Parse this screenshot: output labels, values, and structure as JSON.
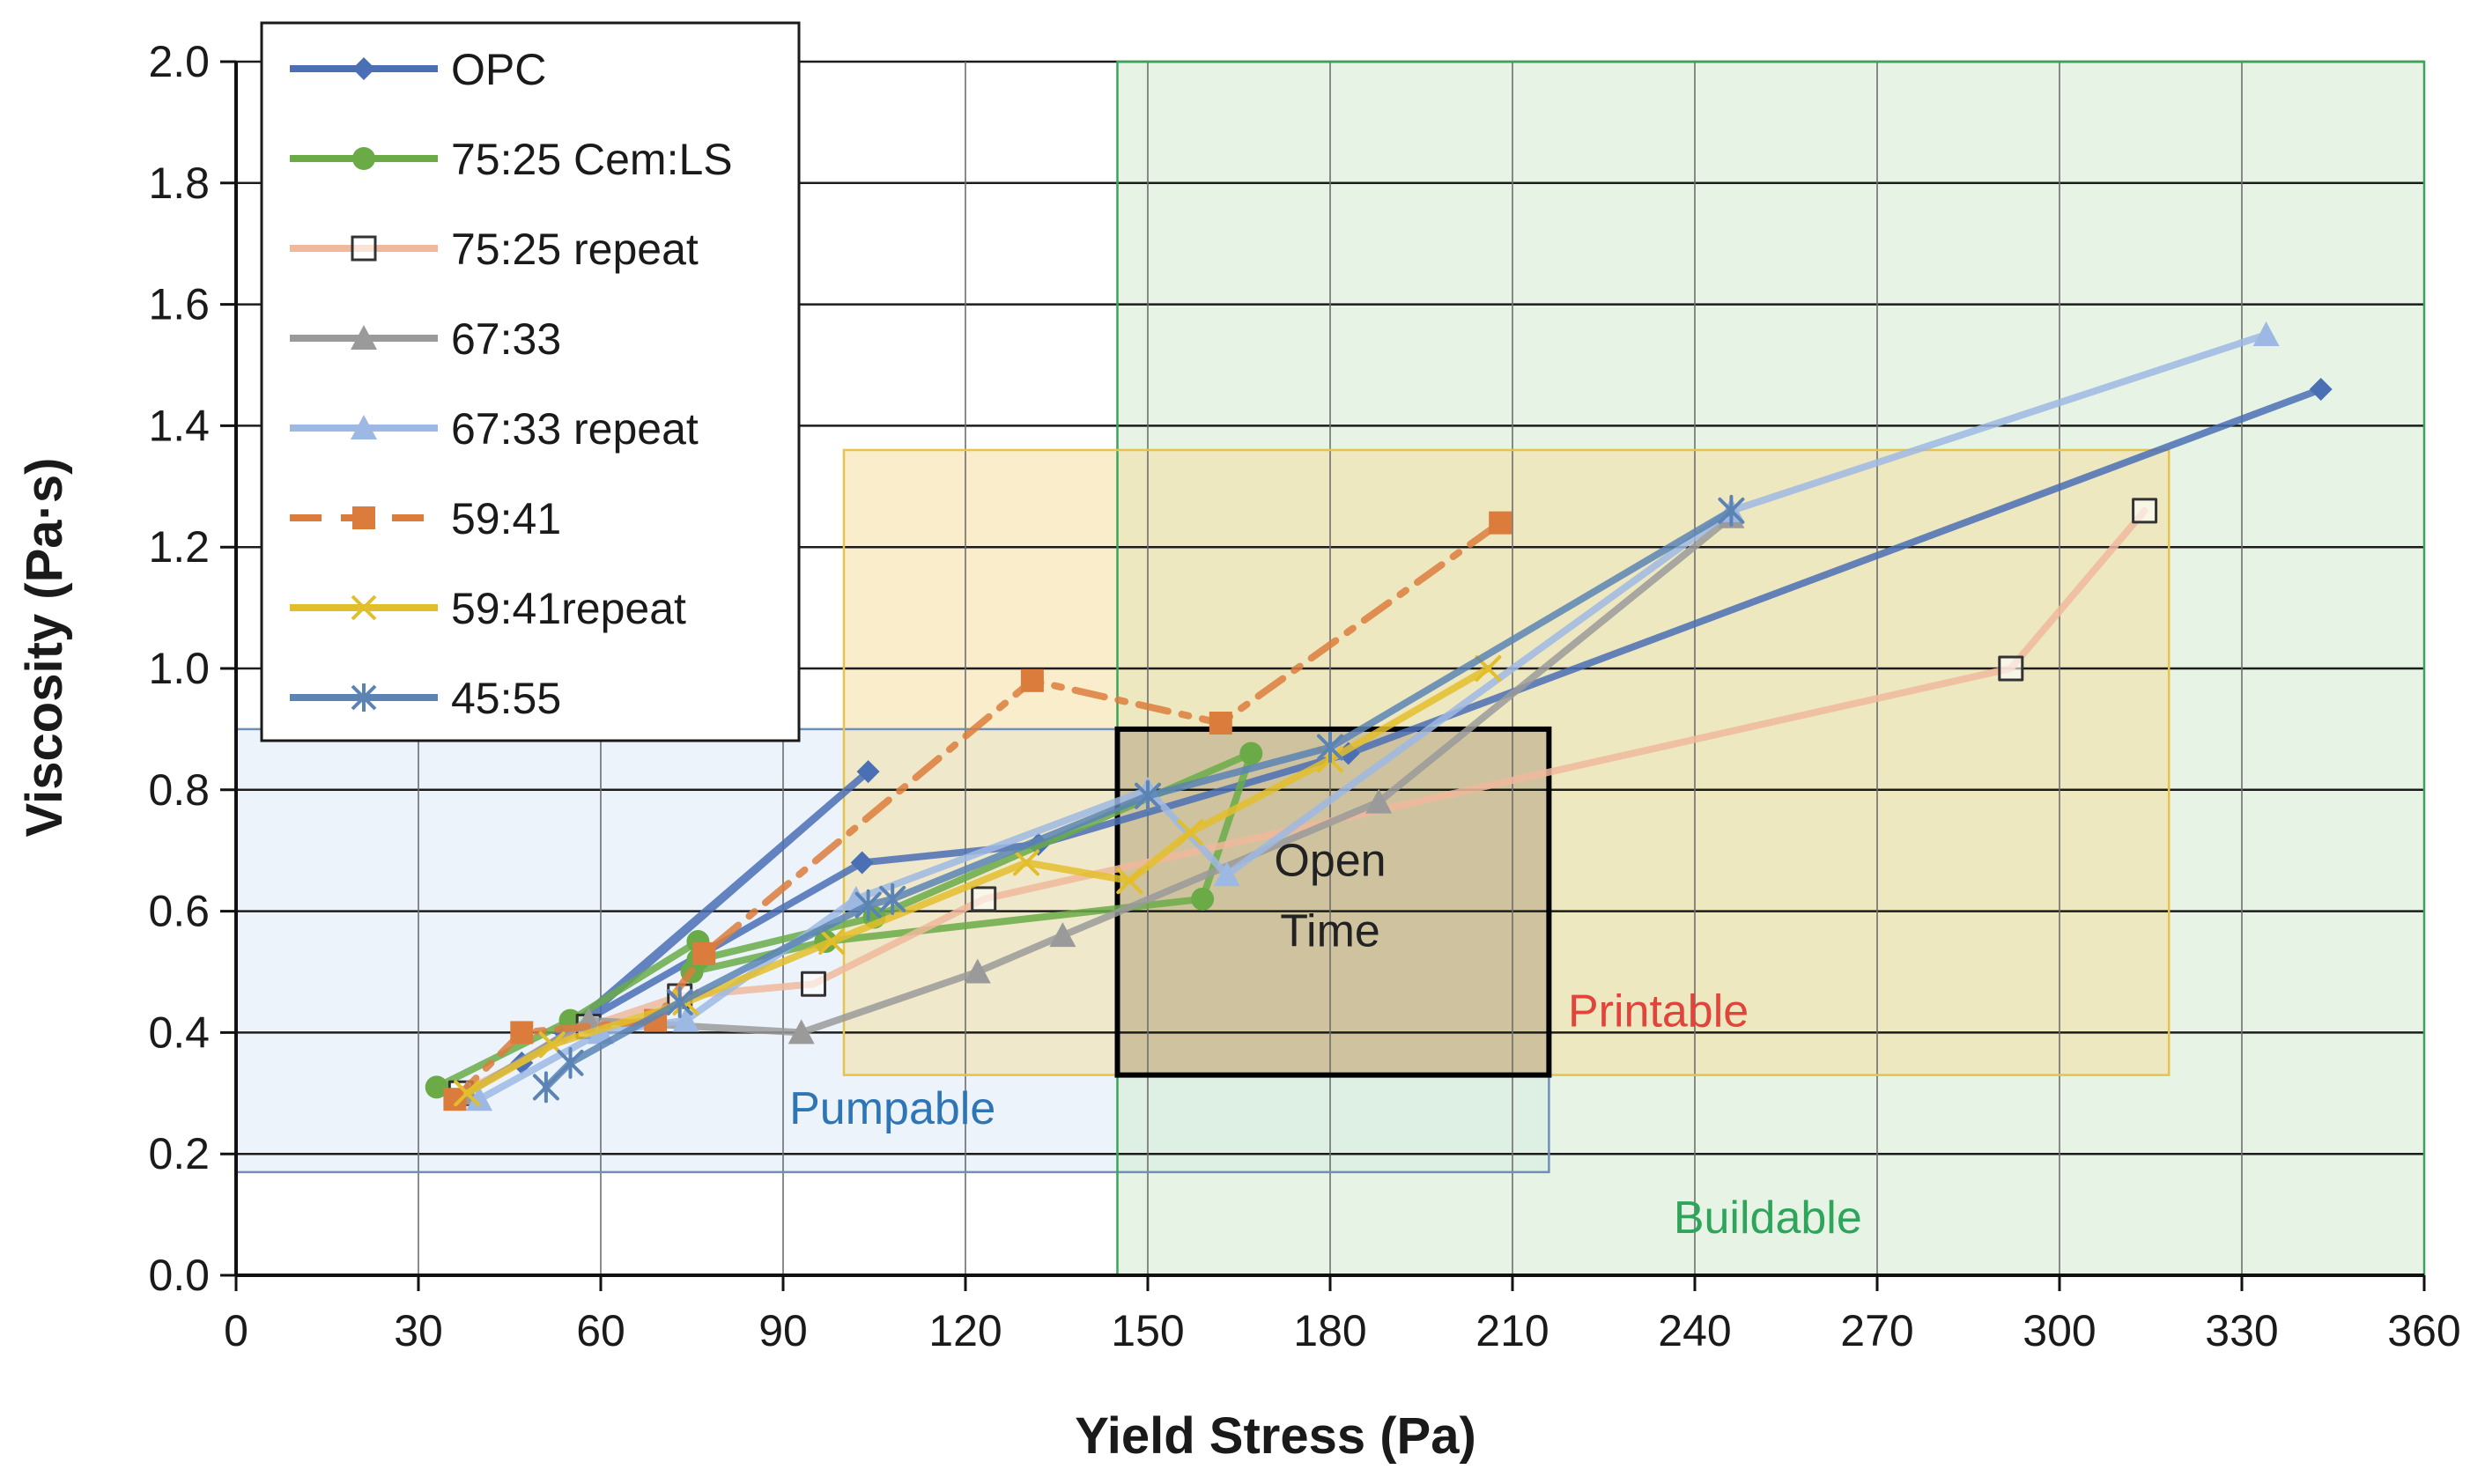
{
  "chart_data": {
    "type": "line",
    "xlabel": "Yield Stress (Pa)",
    "ylabel": "Viscosity (Pa·s)",
    "xlim": [
      0,
      360
    ],
    "ylim": [
      0,
      2.0
    ],
    "xticks": [
      0,
      30,
      60,
      90,
      120,
      150,
      180,
      210,
      240,
      270,
      300,
      330,
      360
    ],
    "yticks": [
      0.0,
      0.2,
      0.4,
      0.6,
      0.8,
      1.0,
      1.2,
      1.4,
      1.6,
      1.8,
      2.0
    ],
    "grid": true,
    "legend_position": "top-left",
    "regions": [
      {
        "label": "Pumpable",
        "x": [
          0,
          216
        ],
        "y": [
          0.17,
          0.9
        ],
        "fill": "#dce9f8",
        "stroke": "#6f8fb8",
        "label_color": "#2e75b6",
        "label_at": [
          108,
          0.25
        ]
      },
      {
        "label": "Buildable",
        "x": [
          145,
          360
        ],
        "y": [
          0,
          2.0
        ],
        "fill": "#d3ebcf",
        "stroke": "#3aa55a",
        "label_color": "#2ea55a",
        "label_at": [
          252,
          0.07
        ]
      },
      {
        "label": "Printable",
        "x": [
          100,
          318
        ],
        "y": [
          0.33,
          1.36
        ],
        "fill": "#f4dfa3",
        "stroke": "#e6c34a",
        "label_color": "#e0443a",
        "label_at": [
          234,
          0.41
        ]
      },
      {
        "label": "Open\nTime",
        "x": [
          145,
          216
        ],
        "y": [
          0.33,
          0.9
        ],
        "fill": "#b8a585",
        "stroke": "#000000",
        "label_color": "#222222",
        "label_at": [
          180,
          0.6
        ]
      }
    ],
    "series": [
      {
        "name": "OPC",
        "color": "#4a6fb5",
        "marker": "diamond",
        "dash": "solid",
        "x": [
          47,
          56,
          104,
          54,
          103,
          132,
          183,
          343
        ],
        "y": [
          0.35,
          0.41,
          0.83,
          0.4,
          0.68,
          0.71,
          0.86,
          1.46
        ]
      },
      {
        "name": "75:25 Cem:LS",
        "color": "#6aab48",
        "marker": "circle",
        "dash": "solid",
        "x": [
          33,
          55,
          76,
          75,
          97,
          159,
          167,
          105,
          76
        ],
        "y": [
          0.31,
          0.42,
          0.55,
          0.5,
          0.55,
          0.62,
          0.86,
          0.59,
          0.52
        ]
      },
      {
        "name": "75:25 repeat",
        "color": "#f0b89c",
        "marker": "square-open",
        "dash": "solid",
        "x": [
          37,
          58,
          73,
          95,
          123,
          292,
          314
        ],
        "y": [
          0.3,
          0.41,
          0.46,
          0.48,
          0.62,
          1.0,
          1.26
        ]
      },
      {
        "name": "67:33",
        "color": "#9a9a9a",
        "marker": "triangle",
        "dash": "solid",
        "x": [
          38,
          58,
          93,
          122,
          136,
          188,
          246
        ],
        "y": [
          0.3,
          0.42,
          0.4,
          0.5,
          0.56,
          0.78,
          1.25
        ]
      },
      {
        "name": "67:33 repeat",
        "color": "#9db8e3",
        "marker": "triangle",
        "dash": "solid",
        "x": [
          40,
          60,
          74,
          102,
          150,
          163,
          246,
          334
        ],
        "y": [
          0.29,
          0.4,
          0.42,
          0.62,
          0.8,
          0.66,
          1.26,
          1.55
        ]
      },
      {
        "name": "59:41",
        "color": "#dc7c3c",
        "marker": "square",
        "dash": "dashdot",
        "x": [
          36,
          47,
          69,
          77,
          131,
          162,
          208
        ],
        "y": [
          0.29,
          0.4,
          0.42,
          0.53,
          0.98,
          0.91,
          1.24
        ]
      },
      {
        "name": "59:41repeat",
        "color": "#e3be2c",
        "marker": "x",
        "dash": "solid",
        "x": [
          38,
          52,
          74,
          98,
          130,
          147,
          157,
          180,
          206
        ],
        "y": [
          0.3,
          0.38,
          0.45,
          0.55,
          0.68,
          0.65,
          0.73,
          0.85,
          1.0
        ]
      },
      {
        "name": "45:55",
        "color": "#5b84b4",
        "marker": "asterisk",
        "dash": "solid",
        "x": [
          51,
          55,
          73,
          104,
          108,
          150,
          180,
          246
        ],
        "y": [
          0.31,
          0.35,
          0.45,
          0.61,
          0.62,
          0.79,
          0.87,
          1.26
        ]
      }
    ]
  }
}
